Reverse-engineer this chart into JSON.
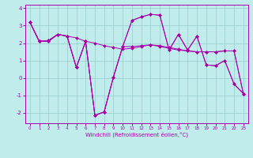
{
  "xlabel": "Windchill (Refroidissement éolien,°C)",
  "bg_color": "#c0ecec",
  "line_color": "#aa00aa",
  "grid_color": "#99cccc",
  "xlim": [
    -0.5,
    23.5
  ],
  "ylim": [
    -2.6,
    4.2
  ],
  "yticks": [
    -2,
    -1,
    0,
    1,
    2,
    3,
    4
  ],
  "xticks": [
    0,
    1,
    2,
    3,
    4,
    5,
    6,
    7,
    8,
    9,
    10,
    11,
    12,
    13,
    14,
    15,
    16,
    17,
    18,
    19,
    20,
    21,
    22,
    23
  ],
  "series": [
    [
      3.2,
      2.1,
      2.1,
      2.5,
      2.4,
      2.3,
      2.1,
      2.0,
      1.85,
      1.75,
      1.65,
      1.7,
      1.8,
      1.9,
      1.85,
      1.75,
      1.65,
      1.55,
      1.5,
      1.5,
      1.5,
      1.55,
      1.55,
      -0.9
    ],
    [
      3.2,
      2.1,
      2.1,
      2.5,
      2.4,
      0.6,
      2.1,
      -2.15,
      -1.95,
      0.05,
      1.8,
      3.3,
      3.5,
      3.65,
      3.6,
      1.6,
      2.5,
      1.6,
      2.4,
      0.75,
      0.7,
      1.0,
      -0.35,
      -0.9
    ],
    [
      3.2,
      2.1,
      2.15,
      2.5,
      2.4,
      0.6,
      2.1,
      -2.15,
      -1.95,
      0.05,
      1.8,
      3.3,
      3.5,
      3.65,
      3.6,
      1.6,
      2.5,
      1.6,
      2.4,
      0.75,
      0.7,
      1.0,
      -0.35,
      -0.9
    ],
    [
      3.2,
      2.1,
      2.15,
      2.5,
      2.4,
      0.6,
      2.1,
      -2.15,
      -1.95,
      0.05,
      1.8,
      1.8,
      1.85,
      1.9,
      1.8,
      1.7,
      1.6,
      1.55,
      1.5,
      1.5,
      1.5,
      1.55,
      1.55,
      -0.9
    ]
  ]
}
